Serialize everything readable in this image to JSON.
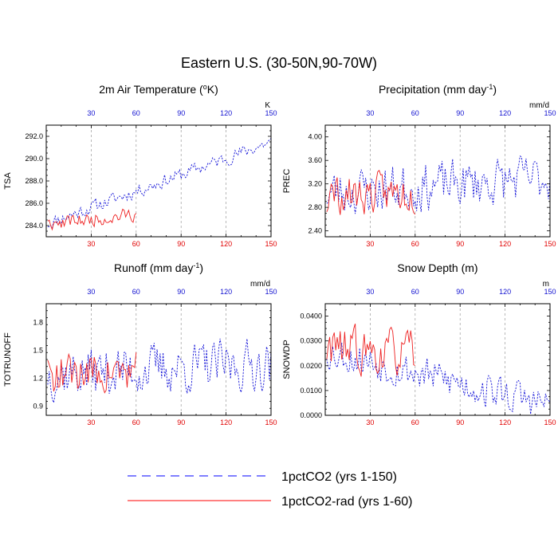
{
  "figure": {
    "title": "Eastern U.S. (30-50N,90-70W)"
  },
  "legend": [
    {
      "label": "1pctCO2 (yrs 1-150)",
      "color": "#0000ff",
      "style": "dashed"
    },
    {
      "label": "1pctCO2-rad (yrs 1-60)",
      "color": "#ff0000",
      "style": "solid"
    }
  ],
  "colors": {
    "series_1pctCO2": "#1414d8",
    "series_rad": "#ee2020",
    "tick_bottom": "#e00000",
    "tick_top": "#1010d0",
    "gridline": "#9a9a9a"
  },
  "chart_data": [
    {
      "type": "line",
      "title_main": "2m Air Temperature (",
      "title_sup": "o",
      "title_end": "K)",
      "unit_label": "K",
      "ylabel": "TSA",
      "xlim": [
        0,
        150
      ],
      "ylim": [
        283.0,
        293.0
      ],
      "yticks": [
        284.0,
        286.0,
        288.0,
        290.0,
        292.0
      ],
      "ytick_labels": [
        "284.0",
        "286.0",
        "288.0",
        "290.0",
        "292.0"
      ],
      "xticks": [
        30,
        60,
        90,
        120,
        150
      ],
      "xtick_labels": [
        "30",
        "60",
        "90",
        "120",
        "150"
      ],
      "grid_x": [
        30,
        60,
        90,
        120
      ],
      "seed": 11,
      "series": [
        {
          "key": "1pctCO2",
          "style": "dashed",
          "n": 150,
          "start": 284.2,
          "end": 291.5,
          "noise": 0.55
        },
        {
          "key": "rad",
          "style": "solid",
          "n": 60,
          "start": 284.1,
          "end": 286.5,
          "noise": 0.55
        }
      ]
    },
    {
      "type": "line",
      "title_main": "Precipitation (mm day",
      "title_sup": "-1",
      "title_end": ")",
      "unit_label": "mm/d",
      "ylabel": "PREC",
      "xlim": [
        0,
        150
      ],
      "ylim": [
        2.3,
        4.2
      ],
      "yticks": [
        2.4,
        2.8,
        3.2,
        3.6,
        4.0
      ],
      "ytick_labels": [
        "2.40",
        "2.80",
        "3.20",
        "3.60",
        "4.00"
      ],
      "xticks": [
        30,
        60,
        90,
        120,
        150
      ],
      "xtick_labels": [
        "30",
        "60",
        "90",
        "120",
        "150"
      ],
      "grid_x": [
        30,
        60,
        90,
        120
      ],
      "seed": 23,
      "series": [
        {
          "key": "1pctCO2",
          "style": "dashed",
          "n": 150,
          "start": 3.05,
          "end": 3.3,
          "noise": 0.36
        },
        {
          "key": "rad",
          "style": "solid",
          "n": 60,
          "start": 3.0,
          "end": 3.15,
          "noise": 0.3
        }
      ]
    },
    {
      "type": "line",
      "title_main": "Runoff (mm day",
      "title_sup": "-1",
      "title_end": ")",
      "unit_label": "mm/d",
      "ylabel": "TOTRUNOFF",
      "xlim": [
        0,
        150
      ],
      "ylim": [
        0.8,
        2.0
      ],
      "yticks": [
        0.9,
        1.2,
        1.5,
        1.8
      ],
      "ytick_labels": [
        "0.9",
        "1.2",
        "1.5",
        "1.8"
      ],
      "xticks": [
        30,
        60,
        90,
        120,
        150
      ],
      "xtick_labels": [
        "30",
        "60",
        "90",
        "120",
        "150"
      ],
      "grid_x": [
        30,
        60,
        90,
        120
      ],
      "seed": 37,
      "series": [
        {
          "key": "1pctCO2",
          "style": "dashed",
          "n": 150,
          "start": 1.25,
          "end": 1.35,
          "noise": 0.24
        },
        {
          "key": "rad",
          "style": "solid",
          "n": 60,
          "start": 1.25,
          "end": 1.3,
          "noise": 0.2
        }
      ]
    },
    {
      "type": "line",
      "title_main": "Snow Depth (m)",
      "title_sup": "",
      "title_end": "",
      "unit_label": "m",
      "ylabel": "SNOWDP",
      "xlim": [
        0,
        150
      ],
      "ylim": [
        0.0,
        0.045
      ],
      "yticks": [
        0.0,
        0.01,
        0.02,
        0.03,
        0.04
      ],
      "ytick_labels": [
        "0.0000",
        "0.0100",
        "0.0200",
        "0.0300",
        "0.0400"
      ],
      "xticks": [
        30,
        60,
        90,
        120,
        150
      ],
      "xtick_labels": [
        "30",
        "60",
        "90",
        "120",
        "150"
      ],
      "grid_x": [
        30,
        60,
        90,
        120
      ],
      "seed": 53,
      "series": [
        {
          "key": "1pctCO2",
          "style": "dashed",
          "n": 150,
          "start": 0.026,
          "end": 0.004,
          "noise": 0.0065
        },
        {
          "key": "rad",
          "style": "solid",
          "n": 60,
          "start": 0.027,
          "end": 0.021,
          "noise": 0.008
        }
      ]
    }
  ]
}
